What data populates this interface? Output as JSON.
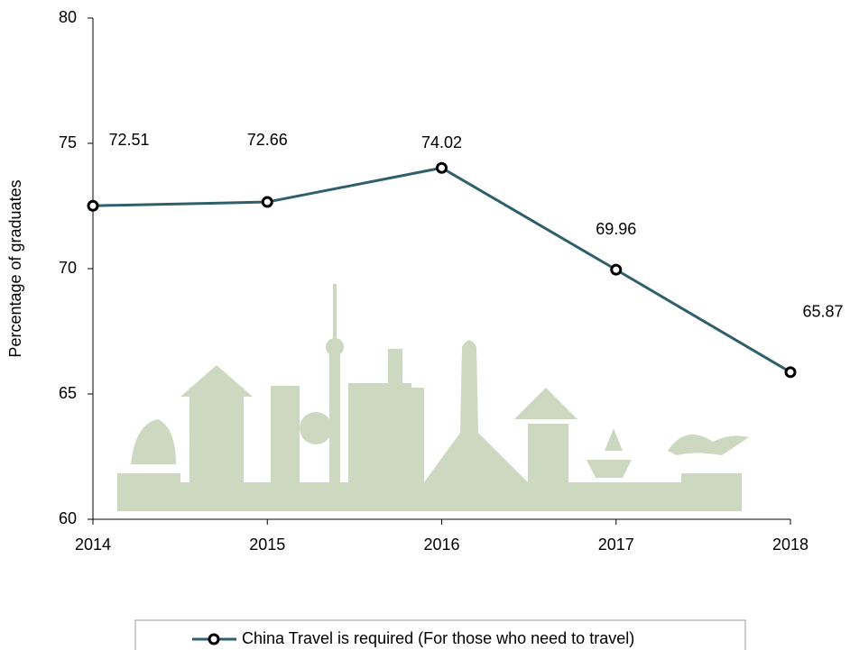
{
  "chart_data": {
    "type": "line",
    "y_label": "Percentage of graduates",
    "categories": [
      "2014",
      "2015",
      "2016",
      "2017",
      "2018"
    ],
    "series": [
      {
        "name": "China Travel is required (For those who need to travel)",
        "color": "#2e5f6b",
        "values": [
          72.51,
          72.66,
          74.02,
          69.96,
          65.87
        ]
      }
    ],
    "ylim": [
      60,
      80
    ],
    "yticks": [
      60,
      65,
      70,
      75,
      80
    ],
    "grid": false
  }
}
